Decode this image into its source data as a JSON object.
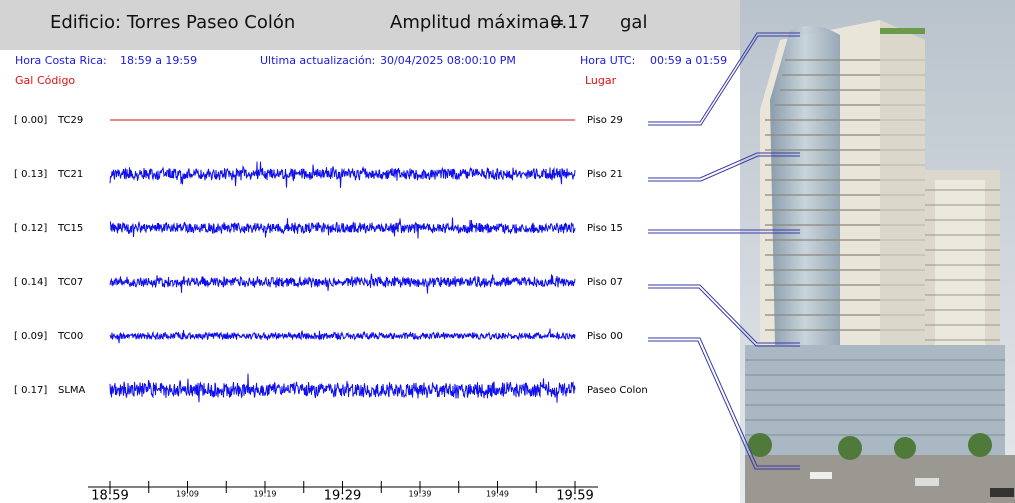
{
  "header": {
    "building_label": "Edificio: Torres Paseo Colón",
    "amplitude_label": "Amplitud máxima=",
    "amplitude_value": "0.17",
    "amplitude_unit": "gal"
  },
  "info": {
    "local_label": "Hora Costa Rica:",
    "local_range": "18:59 a 19:59",
    "update_label": "Ultima actualización:",
    "update_value": "30/04/2025 08:00:10 PM",
    "utc_label": "Hora UTC:",
    "utc_range": "00:59 a 01:59"
  },
  "columns": {
    "gal": "Gal",
    "code": "Código",
    "place": "Lugar"
  },
  "channels": [
    {
      "gal": "[  0.00]",
      "code": "TC29",
      "place": "Piso 29"
    },
    {
      "gal": "[  0.13]",
      "code": "TC21",
      "place": "Piso 21"
    },
    {
      "gal": "[  0.12]",
      "code": "TC15",
      "place": "Piso 15"
    },
    {
      "gal": "[  0.14]",
      "code": "TC07",
      "place": "Piso 07"
    },
    {
      "gal": "[  0.09]",
      "code": "TC00",
      "place": "Piso 00"
    },
    {
      "gal": "[  0.17]",
      "code": "SLMA",
      "place": "Paseo Colon"
    }
  ],
  "time_axis": [
    "18:59",
    "19:09",
    "19:19",
    "19:29",
    "19:39",
    "19:49",
    "19:59"
  ]
}
